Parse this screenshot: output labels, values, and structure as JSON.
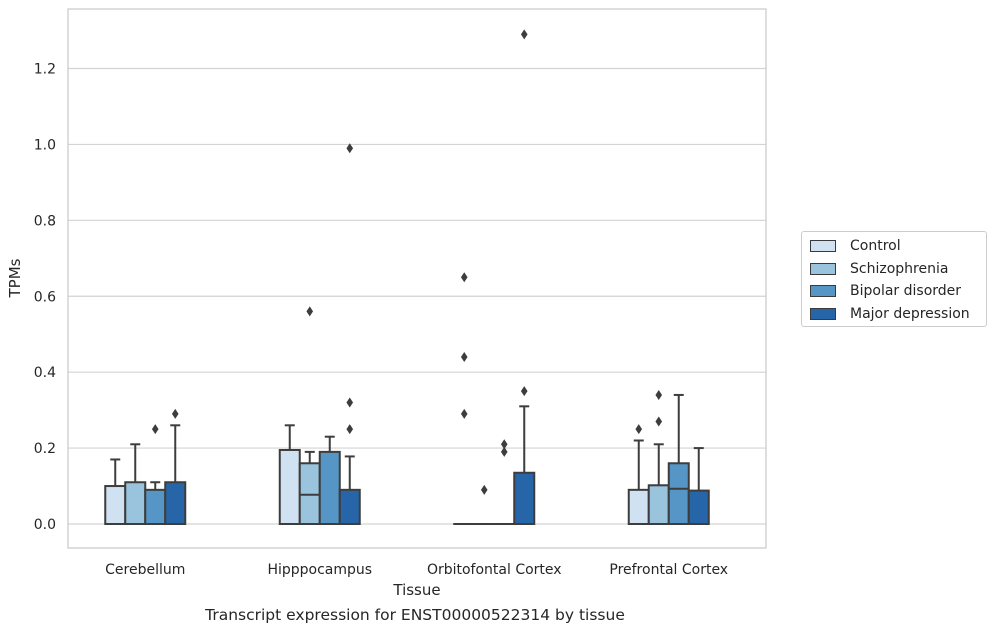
{
  "caption": "Transcript expression for ENST00000522314 by tissue",
  "chart_data": {
    "type": "box",
    "xlabel": "Tissue",
    "ylabel": "TPMs",
    "ylim": [
      -0.065,
      1.36
    ],
    "yticks": [
      "0.0",
      "0.2",
      "0.4",
      "0.6",
      "0.8",
      "1.0",
      "1.2"
    ],
    "grid": true,
    "legend_position": "right",
    "categories": [
      "Cerebellum",
      "Hipppocampus",
      "Orbitofontal Cortex",
      "Prefrontal Cortex"
    ],
    "series": [
      {
        "name": "Control",
        "color": "#d0e1f2",
        "boxes": [
          {
            "q1": 0.0,
            "median": 0.0,
            "q3": 0.1,
            "whisker_low": 0.0,
            "whisker_high": 0.17,
            "outliers": []
          },
          {
            "q1": 0.0,
            "median": 0.0,
            "q3": 0.195,
            "whisker_low": 0.0,
            "whisker_high": 0.26,
            "outliers": []
          },
          {
            "q1": 0.0,
            "median": 0.0,
            "q3": 0.0,
            "whisker_low": 0.0,
            "whisker_high": 0.0,
            "outliers": [
              0.29,
              0.44,
              0.65
            ]
          },
          {
            "q1": 0.0,
            "median": 0.0,
            "q3": 0.09,
            "whisker_low": 0.0,
            "whisker_high": 0.22,
            "outliers": [
              0.25
            ]
          }
        ]
      },
      {
        "name": "Schizophrenia",
        "color": "#9ac3dd",
        "boxes": [
          {
            "q1": 0.0,
            "median": 0.0,
            "q3": 0.11,
            "whisker_low": 0.0,
            "whisker_high": 0.21,
            "outliers": []
          },
          {
            "q1": 0.0,
            "median": 0.077,
            "q3": 0.16,
            "whisker_low": 0.0,
            "whisker_high": 0.19,
            "outliers": [
              0.56
            ]
          },
          {
            "q1": 0.0,
            "median": 0.0,
            "q3": 0.0,
            "whisker_low": 0.0,
            "whisker_high": 0.0,
            "outliers": [
              0.09
            ]
          },
          {
            "q1": 0.0,
            "median": 0.0,
            "q3": 0.102,
            "whisker_low": 0.0,
            "whisker_high": 0.21,
            "outliers": [
              0.27,
              0.34
            ]
          }
        ]
      },
      {
        "name": "Bipolar disorder",
        "color": "#5596c6",
        "boxes": [
          {
            "q1": 0.0,
            "median": 0.0,
            "q3": 0.09,
            "whisker_low": 0.0,
            "whisker_high": 0.11,
            "outliers": [
              0.25
            ]
          },
          {
            "q1": 0.0,
            "median": 0.0,
            "q3": 0.19,
            "whisker_low": 0.0,
            "whisker_high": 0.23,
            "outliers": []
          },
          {
            "q1": 0.0,
            "median": 0.0,
            "q3": 0.0,
            "whisker_low": 0.0,
            "whisker_high": 0.0,
            "outliers": [
              0.19,
              0.21
            ]
          },
          {
            "q1": 0.0,
            "median": 0.093,
            "q3": 0.16,
            "whisker_low": 0.0,
            "whisker_high": 0.34,
            "outliers": []
          }
        ]
      },
      {
        "name": "Major depression",
        "color": "#2666a8",
        "boxes": [
          {
            "q1": 0.0,
            "median": 0.0,
            "q3": 0.11,
            "whisker_low": 0.0,
            "whisker_high": 0.26,
            "outliers": [
              0.29
            ]
          },
          {
            "q1": 0.0,
            "median": 0.0,
            "q3": 0.09,
            "whisker_low": 0.0,
            "whisker_high": 0.178,
            "outliers": [
              0.25,
              0.32,
              0.99
            ]
          },
          {
            "q1": 0.0,
            "median": 0.0,
            "q3": 0.135,
            "whisker_low": 0.0,
            "whisker_high": 0.31,
            "outliers": [
              0.35,
              1.29
            ]
          },
          {
            "q1": 0.0,
            "median": 0.0,
            "q3": 0.088,
            "whisker_low": 0.0,
            "whisker_high": 0.2,
            "outliers": []
          }
        ]
      }
    ]
  }
}
